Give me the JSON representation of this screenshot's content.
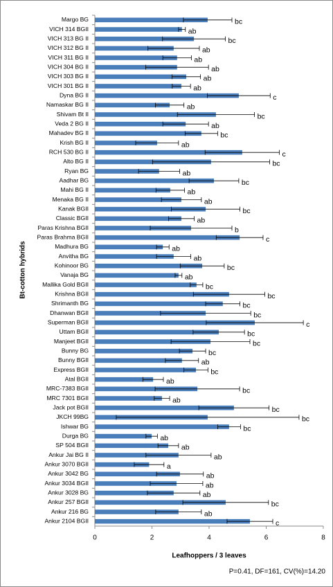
{
  "chart_data": {
    "type": "bar",
    "orientation": "horizontal",
    "x_label": "Leafhoppers / 3 leaves",
    "y_label": "Bt-cotton hybrids",
    "footnote": "P=0.41, DF=161, CV(%)=14.20",
    "categories": [
      "Margo BG",
      "VICH 314 BGII",
      "VICH 313 BG II",
      "VICH 312 BG II",
      "VICH 311 BG II",
      "VICH 304 BG II",
      "VICH 303 BG II",
      "VICH 301 BG II",
      "Dyna BG II",
      "Namaskar BG II",
      "Shivam Bt II",
      "Veda 2 BG II",
      "Mahadev BG II",
      "Krish BG II",
      "RCH 530 BG II",
      "Alto BG II",
      "Ryan BG",
      "Aadhar BG",
      "Mahi  BG II",
      "Menaka BG II",
      "Kanak BGII",
      "Classic BGII",
      "Paras Krishna BGII",
      "Paras Brahma BGII",
      "Madhura BG",
      "Anvitha BG",
      "Kohinoor BG",
      "Vanaja BG",
      "Mallika Gold BGII",
      "Krishna BGII",
      "Shrimanth BG",
      "Dhanwan BGII",
      "Superman BGII",
      "Uttam BGII",
      "Manjeet BGII",
      "Bunny BG",
      "Bunny BGII",
      "Express BGII",
      "Atal BGII",
      "MRC-7383 BGII",
      "MRC 7301 BGII",
      "Jack pot BGII",
      "JKCH 99BG",
      "Ishwar BG",
      "Durga BG",
      "SP 504 BGII",
      "Ankur Jai BG II",
      "Ankur 3070 BGII",
      "Ankur 3042 BG",
      "Ankur 3034 BGII",
      "Ankur 3028 BG",
      "Ankur 257 BGII",
      "Ankur 216 BG",
      "Ankur 2104 BGII"
    ],
    "values": [
      3.95,
      3.05,
      3.47,
      2.76,
      2.88,
      2.88,
      3.2,
      3.03,
      5.04,
      2.62,
      4.24,
      3.18,
      3.73,
      2.18,
      5.16,
      4.07,
      2.25,
      4.17,
      2.64,
      3.03,
      3.88,
      3.03,
      3.37,
      5.07,
      2.38,
      2.76,
      3.76,
      2.93,
      3.56,
      4.7,
      4.48,
      3.88,
      5.6,
      4.34,
      4.05,
      3.42,
      3.05,
      3.54,
      2.04,
      3.59,
      2.35,
      4.87,
      3.95,
      4.7,
      1.99,
      2.57,
      2.93,
      1.9,
      2.98,
      2.86,
      2.76,
      4.58,
      2.93,
      5.43
    ],
    "errors": [
      0.85,
      0.12,
      1.1,
      0.9,
      0.5,
      1.1,
      0.5,
      0.32,
      1.1,
      0.5,
      1.35,
      0.8,
      0.57,
      0.75,
      1.3,
      2.05,
      0.72,
      0.87,
      0.5,
      0.7,
      1.2,
      0.45,
      1.43,
      0.82,
      0.22,
      0.6,
      0.77,
      0.12,
      0.22,
      1.25,
      0.6,
      1.58,
      1.7,
      0.9,
      1.38,
      0.46,
      0.58,
      0.42,
      0.36,
      1.48,
      0.27,
      1.23,
      3.2,
      0.4,
      0.2,
      0.36,
      1.14,
      0.52,
      0.82,
      0.92,
      0.92,
      1.5,
      0.8,
      0.8
    ],
    "letters": [
      "bc",
      "ab",
      "bc",
      "ab",
      "ab",
      "ab",
      "ab",
      "ab",
      "c",
      "ab",
      "bc",
      "ab",
      "bc",
      "ab",
      "c",
      "bc",
      "ab",
      "bc",
      "ab",
      "ab",
      "bc",
      "ab",
      "b",
      "c",
      "ab",
      "ab",
      "bc",
      "ab",
      "bc",
      "bc",
      "bc",
      "bc",
      "c",
      "bc",
      "bc",
      "bc",
      "ab",
      "bc",
      "ab",
      "bc",
      "ab",
      "bc",
      "bc",
      "bc",
      "ab",
      "ab",
      "ab",
      "a",
      "ab",
      "ab",
      "ab",
      "bc",
      "ab",
      "c"
    ],
    "color": "#4a7ebb",
    "xlim": [
      0,
      8
    ],
    "xticks": [
      0,
      2,
      4,
      6,
      8
    ]
  }
}
